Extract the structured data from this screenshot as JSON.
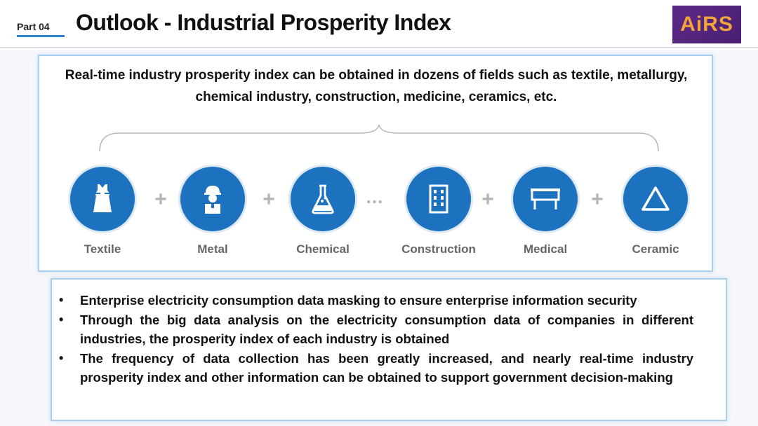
{
  "header": {
    "part": "Part 04",
    "title": "Outlook - Industrial Prosperity Index",
    "logo_text": "AiRS",
    "accent_color": "#2b87d3",
    "logo_bg": "#5b2a86",
    "logo_fg": "#f2a33a"
  },
  "intro": "Real-time industry prosperity index can be obtained in dozens of fields such as textile, metallurgy, chemical industry, construction, medicine, ceramics, etc.",
  "industries": [
    {
      "label": "Textile",
      "icon": "dress-icon"
    },
    {
      "label": "Metal",
      "icon": "worker-icon"
    },
    {
      "label": "Chemical",
      "icon": "flask-icon"
    },
    {
      "label": "Construction",
      "icon": "building-icon"
    },
    {
      "label": "Medical",
      "icon": "bed-icon"
    },
    {
      "label": "Ceramic",
      "icon": "triangle-icon"
    }
  ],
  "separators": [
    "+",
    "+",
    "...",
    "+",
    "+"
  ],
  "circle_color": "#1d72bf",
  "bullets": [
    "Enterprise electricity consumption data masking to ensure enterprise information security",
    "Through the big data analysis on the electricity consumption data of  companies in different industries, the prosperity index of each industry is obtained",
    "The frequency of data collection has been greatly increased, and nearly real-time industry prosperity index and other information can be obtained to support government decision-making"
  ],
  "bullet_symbol": "•"
}
